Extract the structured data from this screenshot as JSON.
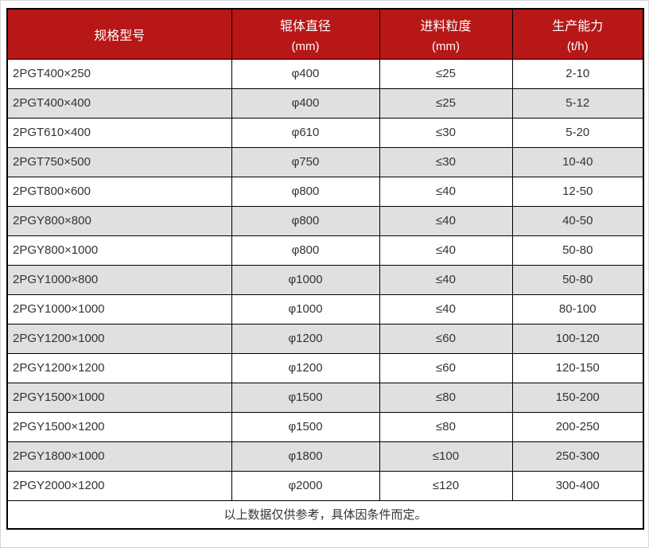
{
  "colors": {
    "header_bg": "#b71717",
    "header_text": "#ffffff",
    "row_alt_bg": "#e0e0e0",
    "border": "#000000",
    "body_text": "#333333"
  },
  "table": {
    "columns": [
      {
        "label": "规格型号",
        "sub": ""
      },
      {
        "label": "辊体直径",
        "sub": "(mm)"
      },
      {
        "label": "进料粒度",
        "sub": "(mm)"
      },
      {
        "label": "生产能力",
        "sub": "(t/h)"
      }
    ],
    "rows": [
      [
        "2PGT400×250",
        "φ400",
        "≤25",
        "2-10"
      ],
      [
        "2PGT400×400",
        "φ400",
        "≤25",
        "5-12"
      ],
      [
        "2PGT610×400",
        "φ610",
        "≤30",
        "5-20"
      ],
      [
        "2PGT750×500",
        "φ750",
        "≤30",
        "10-40"
      ],
      [
        "2PGT800×600",
        "φ800",
        "≤40",
        "12-50"
      ],
      [
        "2PGY800×800",
        "φ800",
        "≤40",
        "40-50"
      ],
      [
        "2PGY800×1000",
        "φ800",
        "≤40",
        "50-80"
      ],
      [
        "2PGY1000×800",
        "φ1000",
        "≤40",
        "50-80"
      ],
      [
        "2PGY1000×1000",
        "φ1000",
        "≤40",
        "80-100"
      ],
      [
        "2PGY1200×1000",
        "φ1200",
        "≤60",
        "100-120"
      ],
      [
        "2PGY1200×1200",
        "φ1200",
        "≤60",
        "120-150"
      ],
      [
        "2PGY1500×1000",
        "φ1500",
        "≤80",
        "150-200"
      ],
      [
        "2PGY1500×1200",
        "φ1500",
        "≤80",
        "200-250"
      ],
      [
        "2PGY1800×1000",
        "φ1800",
        "≤100",
        "250-300"
      ],
      [
        "2PGY2000×1200",
        "φ2000",
        "≤120",
        "300-400"
      ]
    ],
    "footer": "以上数据仅供参考，具体因条件而定。"
  },
  "chart_data": {
    "type": "table",
    "columns": [
      "规格型号",
      "辊体直径 (mm)",
      "进料粒度 (mm)",
      "生产能力 (t/h)"
    ],
    "rows": [
      [
        "2PGT400×250",
        "φ400",
        "≤25",
        "2-10"
      ],
      [
        "2PGT400×400",
        "φ400",
        "≤25",
        "5-12"
      ],
      [
        "2PGT610×400",
        "φ610",
        "≤30",
        "5-20"
      ],
      [
        "2PGT750×500",
        "φ750",
        "≤30",
        "10-40"
      ],
      [
        "2PGT800×600",
        "φ800",
        "≤40",
        "12-50"
      ],
      [
        "2PGY800×800",
        "φ800",
        "≤40",
        "40-50"
      ],
      [
        "2PGY800×1000",
        "φ800",
        "≤40",
        "50-80"
      ],
      [
        "2PGY1000×800",
        "φ1000",
        "≤40",
        "50-80"
      ],
      [
        "2PGY1000×1000",
        "φ1000",
        "≤40",
        "80-100"
      ],
      [
        "2PGY1200×1000",
        "φ1200",
        "≤60",
        "100-120"
      ],
      [
        "2PGY1200×1200",
        "φ1200",
        "≤60",
        "120-150"
      ],
      [
        "2PGY1500×1000",
        "φ1500",
        "≤80",
        "150-200"
      ],
      [
        "2PGY1500×1200",
        "φ1500",
        "≤80",
        "200-250"
      ],
      [
        "2PGY1800×1000",
        "φ1800",
        "≤100",
        "250-300"
      ],
      [
        "2PGY2000×1200",
        "φ2000",
        "≤120",
        "300-400"
      ]
    ],
    "note": "以上数据仅供参考，具体因条件而定。"
  }
}
